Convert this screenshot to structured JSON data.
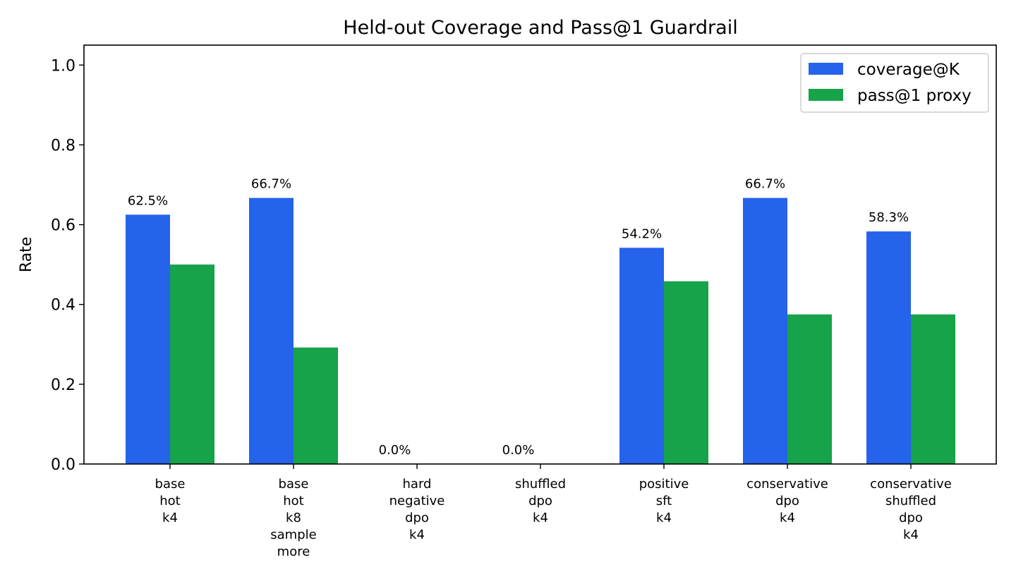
{
  "chart_data": {
    "type": "bar",
    "title": "Held-out Coverage and Pass@1 Guardrail",
    "xlabel": "",
    "ylabel": "Rate",
    "ylim": [
      0,
      1.05
    ],
    "yticks": [
      "0.0",
      "0.2",
      "0.4",
      "0.6",
      "0.8",
      "1.0"
    ],
    "grid": false,
    "legend_position": "top-right",
    "categories": [
      [
        "base",
        "hot",
        "k4"
      ],
      [
        "base",
        "hot",
        "k8",
        "sample",
        "more"
      ],
      [
        "hard",
        "negative",
        "dpo",
        "k4"
      ],
      [
        "shuffled",
        "dpo",
        "k4"
      ],
      [
        "positive",
        "sft",
        "k4"
      ],
      [
        "conservative",
        "dpo",
        "k4"
      ],
      [
        "conservative",
        "shuffled",
        "dpo",
        "k4"
      ]
    ],
    "series": [
      {
        "name": "coverage@K",
        "color": "#2563eb",
        "values": [
          0.625,
          0.667,
          0.0,
          0.0,
          0.542,
          0.667,
          0.583
        ]
      },
      {
        "name": "pass@1 proxy",
        "color": "#16a34a",
        "values": [
          0.5,
          0.292,
          0.0,
          0.0,
          0.458,
          0.375,
          0.375
        ]
      }
    ],
    "data_labels": [
      "62.5%",
      "66.7%",
      "0.0%",
      "0.0%",
      "54.2%",
      "66.7%",
      "58.3%"
    ]
  }
}
